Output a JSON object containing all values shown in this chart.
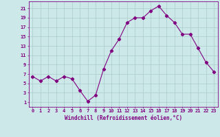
{
  "x": [
    0,
    1,
    2,
    3,
    4,
    5,
    6,
    7,
    8,
    9,
    10,
    11,
    12,
    13,
    14,
    15,
    16,
    17,
    18,
    19,
    20,
    21,
    22,
    23
  ],
  "y": [
    6.5,
    5.5,
    6.5,
    5.5,
    6.5,
    6.0,
    3.5,
    1.2,
    2.5,
    8.0,
    12.0,
    14.5,
    18.0,
    19.0,
    19.0,
    20.5,
    21.5,
    19.5,
    18.0,
    15.5,
    15.5,
    12.5,
    9.5,
    7.5
  ],
  "line_color": "#800080",
  "marker": "D",
  "marker_size": 2.2,
  "bg_color": "#cce8e8",
  "grid_color": "#aacccc",
  "xlabel": "Windchill (Refroidissement éolien,°C)",
  "ylabel_ticks": [
    1,
    3,
    5,
    7,
    9,
    11,
    13,
    15,
    17,
    19,
    21
  ],
  "xticks": [
    0,
    1,
    2,
    3,
    4,
    5,
    6,
    7,
    8,
    9,
    10,
    11,
    12,
    13,
    14,
    15,
    16,
    17,
    18,
    19,
    20,
    21,
    22,
    23
  ],
  "ylim": [
    0,
    22.5
  ],
  "xlim": [
    -0.5,
    23.5
  ],
  "tick_color": "#800080",
  "label_color": "#800080",
  "tick_fontsize": 5.0,
  "label_fontsize": 5.5
}
